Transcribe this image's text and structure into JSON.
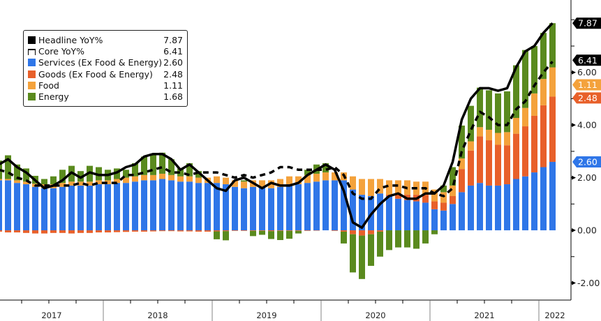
{
  "chart_data": {
    "type": "bar",
    "stacked": true,
    "title": "",
    "xlabel": "",
    "ylabel": "",
    "x_start": "2017-01",
    "x_end": "2022-02",
    "frequency": "monthly",
    "year_labels": [
      "2017",
      "2018",
      "2019",
      "2020",
      "2021",
      "2022"
    ],
    "ylim": [
      -2.65,
      8.75
    ],
    "y_ticks": [
      -2,
      0,
      2,
      4,
      6
    ],
    "y_tick_labels": [
      "-2.00",
      "0.00",
      "2.00",
      "4.00",
      "6.00"
    ],
    "y_axis_side": "right",
    "grid": false,
    "legend_placement": "top-left",
    "series": [
      {
        "name": "Services (Ex Food & Energy)",
        "kind": "bar",
        "color": "#2f76e8",
        "last": "2.60",
        "values": [
          1.9,
          1.9,
          1.8,
          1.75,
          1.65,
          1.6,
          1.6,
          1.65,
          1.7,
          1.7,
          1.7,
          1.75,
          1.75,
          1.8,
          1.8,
          1.85,
          1.9,
          1.9,
          1.95,
          1.9,
          1.85,
          1.85,
          1.8,
          1.8,
          1.8,
          1.75,
          1.65,
          1.6,
          1.65,
          1.65,
          1.6,
          1.65,
          1.75,
          1.75,
          1.8,
          1.85,
          1.9,
          1.9,
          1.9,
          1.55,
          1.35,
          1.3,
          1.4,
          1.3,
          1.2,
          1.15,
          1.1,
          1.05,
          0.8,
          0.75,
          1.0,
          1.45,
          1.7,
          1.8,
          1.7,
          1.7,
          1.75,
          1.95,
          2.05,
          2.2,
          2.4,
          2.6
        ]
      },
      {
        "name": "Goods (Ex Food & Energy)",
        "kind": "bar",
        "color": "#e8602a",
        "last": "2.48",
        "values": [
          -0.05,
          -0.08,
          -0.08,
          -0.1,
          -0.12,
          -0.12,
          -0.1,
          -0.1,
          -0.12,
          -0.1,
          -0.1,
          -0.08,
          -0.08,
          -0.07,
          -0.06,
          -0.05,
          -0.05,
          -0.04,
          -0.03,
          -0.03,
          -0.04,
          -0.04,
          -0.05,
          -0.05,
          -0.04,
          -0.03,
          -0.02,
          -0.02,
          -0.02,
          -0.02,
          -0.03,
          -0.02,
          -0.02,
          -0.02,
          -0.02,
          -0.01,
          0.0,
          -0.02,
          -0.05,
          -0.15,
          -0.2,
          -0.15,
          -0.05,
          0.05,
          0.15,
          0.2,
          0.25,
          0.3,
          0.3,
          0.3,
          0.3,
          0.88,
          1.33,
          1.77,
          1.72,
          1.55,
          1.48,
          1.72,
          1.9,
          2.15,
          2.35,
          2.48
        ]
      },
      {
        "name": "Food",
        "kind": "bar",
        "color": "#f4a23c",
        "last": "1.11",
        "values": [
          0.05,
          0.05,
          0.1,
          0.1,
          0.12,
          0.15,
          0.15,
          0.15,
          0.15,
          0.15,
          0.15,
          0.15,
          0.15,
          0.15,
          0.2,
          0.2,
          0.2,
          0.2,
          0.2,
          0.2,
          0.2,
          0.2,
          0.2,
          0.2,
          0.25,
          0.25,
          0.25,
          0.25,
          0.25,
          0.25,
          0.3,
          0.3,
          0.3,
          0.3,
          0.3,
          0.3,
          0.3,
          0.3,
          0.3,
          0.5,
          0.6,
          0.65,
          0.55,
          0.55,
          0.55,
          0.55,
          0.5,
          0.5,
          0.45,
          0.4,
          0.4,
          0.4,
          0.35,
          0.35,
          0.4,
          0.45,
          0.5,
          0.6,
          0.7,
          0.85,
          1.0,
          1.11
        ]
      },
      {
        "name": "Energy",
        "kind": "bar",
        "color": "#5a8a1e",
        "last": "1.68",
        "values": [
          0.7,
          0.9,
          0.6,
          0.5,
          0.3,
          0.2,
          0.3,
          0.5,
          0.6,
          0.4,
          0.6,
          0.5,
          0.4,
          0.4,
          0.3,
          0.5,
          0.7,
          0.8,
          0.8,
          0.6,
          0.3,
          0.5,
          0.25,
          0.0,
          -0.3,
          -0.35,
          0.0,
          0.05,
          -0.2,
          -0.15,
          -0.3,
          -0.35,
          -0.3,
          -0.1,
          0.2,
          0.35,
          0.35,
          0.0,
          -0.45,
          -1.45,
          -1.65,
          -1.2,
          -0.95,
          -0.75,
          -0.65,
          -0.65,
          -0.7,
          -0.5,
          -0.15,
          0.25,
          0.7,
          1.25,
          1.35,
          1.5,
          1.5,
          1.5,
          1.55,
          2.0,
          2.2,
          1.8,
          1.75,
          1.68
        ]
      },
      {
        "name": "Headline YoY%",
        "kind": "line",
        "style": "solid",
        "color": "#000000",
        "last": "7.87",
        "values": [
          2.5,
          2.7,
          2.4,
          2.2,
          1.9,
          1.6,
          1.7,
          1.9,
          2.2,
          2.0,
          2.2,
          2.1,
          2.1,
          2.2,
          2.4,
          2.5,
          2.8,
          2.9,
          2.9,
          2.7,
          2.3,
          2.5,
          2.2,
          1.9,
          1.6,
          1.5,
          1.9,
          2.0,
          1.8,
          1.6,
          1.8,
          1.7,
          1.7,
          1.8,
          2.1,
          2.3,
          2.5,
          2.3,
          1.5,
          0.3,
          0.1,
          0.6,
          1.0,
          1.3,
          1.4,
          1.2,
          1.2,
          1.4,
          1.4,
          1.7,
          2.6,
          4.2,
          5.0,
          5.4,
          5.4,
          5.3,
          5.4,
          6.2,
          6.8,
          7.0,
          7.5,
          7.87
        ]
      },
      {
        "name": "Core YoY%",
        "kind": "line",
        "style": "dashed",
        "color": "#000000",
        "last": "6.41",
        "values": [
          2.3,
          2.2,
          2.0,
          1.9,
          1.7,
          1.7,
          1.7,
          1.7,
          1.7,
          1.8,
          1.7,
          1.8,
          1.8,
          1.8,
          2.1,
          2.1,
          2.2,
          2.3,
          2.4,
          2.2,
          2.2,
          2.1,
          2.2,
          2.2,
          2.2,
          2.1,
          2.0,
          2.1,
          2.0,
          2.1,
          2.2,
          2.4,
          2.4,
          2.3,
          2.3,
          2.3,
          2.3,
          2.4,
          2.1,
          1.4,
          1.2,
          1.2,
          1.6,
          1.7,
          1.7,
          1.6,
          1.6,
          1.6,
          1.4,
          1.3,
          1.6,
          3.0,
          3.8,
          4.5,
          4.3,
          4.0,
          4.0,
          4.6,
          4.9,
          5.5,
          6.0,
          6.41
        ]
      }
    ]
  },
  "legend": {
    "items": [
      {
        "label": "Headline YoY%",
        "value": "7.87"
      },
      {
        "label": "Core YoY%",
        "value": "6.41"
      },
      {
        "label": "Services (Ex Food & Energy)",
        "value": "2.60"
      },
      {
        "label": "Goods (Ex Food & Energy)",
        "value": "2.48"
      },
      {
        "label": "Food",
        "value": "1.11"
      },
      {
        "label": "Energy",
        "value": "1.68"
      }
    ]
  }
}
